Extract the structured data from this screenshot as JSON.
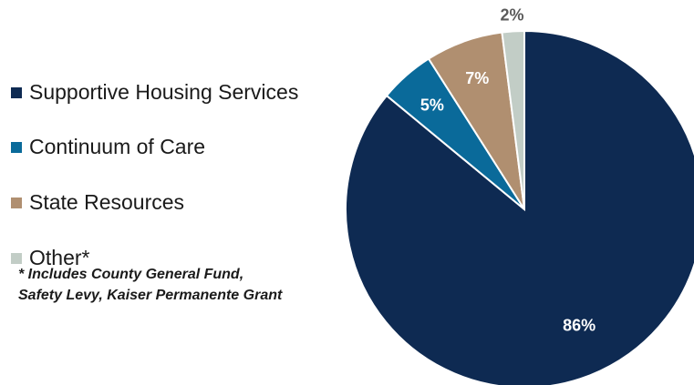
{
  "chart_data": {
    "type": "pie",
    "categories": [
      "Supportive Housing Services",
      "Continuum of Care",
      "State Resources",
      "Other*"
    ],
    "values": [
      86,
      5,
      7,
      2
    ],
    "labels": [
      "86%",
      "5%",
      "7%",
      "2%"
    ],
    "colors": [
      "#0e2a52",
      "#0a6a9a",
      "#b08f70",
      "#c2cdc6"
    ],
    "label_colors": [
      "#ffffff",
      "#ffffff",
      "#ffffff",
      "#5a5a5a"
    ],
    "legend_placement": "left",
    "footnote": [
      "* Includes County General Fund,",
      "Safety Levy, Kaiser Permanente Grant"
    ]
  }
}
